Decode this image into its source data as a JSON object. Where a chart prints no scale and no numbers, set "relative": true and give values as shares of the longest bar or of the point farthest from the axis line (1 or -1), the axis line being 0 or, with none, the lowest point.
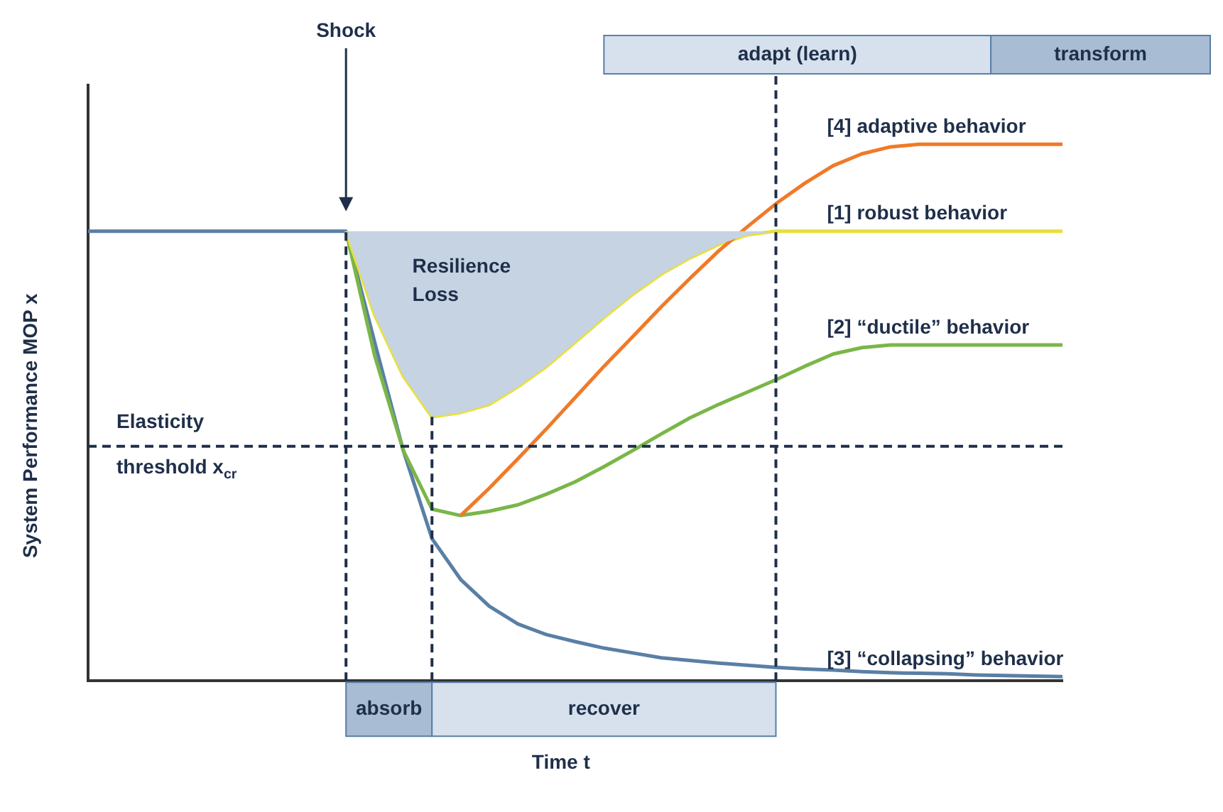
{
  "chart_data": {
    "type": "line",
    "relative": true,
    "xlabel": "Time t",
    "ylabel": "System Performance MOP x",
    "marker": "none",
    "categories": [
      null,
      null,
      null,
      null,
      null,
      null,
      null,
      null,
      null,
      null,
      null,
      null,
      null,
      null,
      null,
      null,
      null,
      null,
      null,
      null,
      null,
      null,
      null,
      null,
      null,
      null,
      null,
      null,
      null,
      null,
      null,
      null,
      null,
      null,
      null
    ],
    "series": [
      {
        "name": "[4] adaptive behavior",
        "color": "#f07a28",
        "values": [
          null,
          null,
          null,
          null,
          null,
          null,
          null,
          null,
          null,
          null,
          null,
          null,
          null,
          0.308,
          0.359,
          0.414,
          0.47,
          0.528,
          0.586,
          0.641,
          0.697,
          0.75,
          0.801,
          0.846,
          0.889,
          0.927,
          0.96,
          0.982,
          0.995,
          1,
          1,
          1,
          1,
          1,
          1
        ]
      },
      {
        "name": "[1] robust behavior",
        "color": "#e8e03a",
        "values": [
          null,
          null,
          null,
          null,
          null,
          null,
          null,
          null,
          null,
          0.838,
          0.682,
          0.568,
          0.492,
          0.5,
          0.515,
          0.548,
          0.586,
          0.631,
          0.677,
          0.72,
          0.758,
          0.788,
          0.813,
          0.831,
          0.838,
          0.838,
          0.838,
          0.838,
          0.838,
          0.838,
          0.838,
          0.838,
          0.838,
          0.838,
          0.838
        ],
        "lower": [
          null,
          null,
          null,
          null,
          null,
          null,
          null,
          null,
          null,
          0.838,
          0.682,
          0.568,
          0.492,
          0.5,
          0.515,
          0.548,
          0.586,
          0.631,
          0.677,
          0.72,
          0.758,
          0.788,
          0.813,
          0.831,
          0.838,
          null,
          null,
          null,
          null,
          null,
          null,
          null,
          null,
          null,
          null
        ],
        "upper": [
          null,
          null,
          null,
          null,
          null,
          null,
          null,
          null,
          null,
          0.838,
          0.838,
          0.838,
          0.838,
          0.838,
          0.838,
          0.838,
          0.838,
          0.838,
          0.838,
          0.838,
          0.838,
          0.838,
          0.838,
          0.838,
          0.838,
          null,
          null,
          null,
          null,
          null,
          null,
          null,
          null,
          null,
          null
        ]
      },
      {
        "name": "[2] “ductile” behavior",
        "color": "#7ab648",
        "values": [
          null,
          null,
          null,
          null,
          null,
          null,
          null,
          null,
          null,
          0.838,
          0.606,
          0.429,
          0.32,
          0.308,
          0.316,
          0.328,
          0.348,
          0.371,
          0.399,
          0.429,
          0.46,
          0.49,
          0.515,
          0.538,
          0.561,
          0.586,
          0.609,
          0.621,
          0.626,
          0.626,
          0.626,
          0.626,
          0.626,
          0.626,
          0.626
        ]
      },
      {
        "name": "[3] “collapsing” behavior",
        "color": "#5a7fa6",
        "values": [
          0.838,
          0.838,
          0.838,
          0.838,
          0.838,
          0.838,
          0.838,
          0.838,
          0.838,
          0.838,
          0.631,
          0.429,
          0.265,
          0.189,
          0.139,
          0.106,
          0.086,
          0.073,
          0.061,
          0.052,
          0.043,
          0.038,
          0.033,
          0.029,
          0.025,
          0.022,
          0.02,
          0.017,
          0.015,
          0.014,
          0.013,
          0.011,
          0.01,
          0.009,
          0.008
        ]
      }
    ],
    "ref_lines": [
      {
        "axis": "y",
        "value": 0.437,
        "label": "Elasticity threshold x$_{cr}$",
        "line_style": "dashed",
        "color": "#1f2f4a"
      }
    ],
    "annotations": [
      "Shock",
      "absorb",
      "recover",
      "adapt (learn)",
      "transform",
      "Resilience Loss"
    ]
  }
}
